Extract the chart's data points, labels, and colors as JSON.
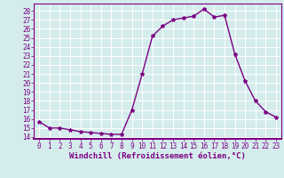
{
  "x": [
    0,
    1,
    2,
    3,
    4,
    5,
    6,
    7,
    8,
    9,
    10,
    11,
    12,
    13,
    14,
    15,
    16,
    17,
    18,
    19,
    20,
    21,
    22,
    23
  ],
  "y": [
    15.7,
    15.0,
    15.0,
    14.8,
    14.6,
    14.5,
    14.4,
    14.3,
    14.3,
    17.0,
    21.0,
    25.2,
    26.3,
    27.0,
    27.2,
    27.4,
    28.2,
    27.3,
    27.5,
    23.2,
    20.2,
    18.0,
    16.8,
    16.2
  ],
  "line_color": "#7b0083",
  "marker": "*",
  "marker_size": 3,
  "bg_color": "#d5ecec",
  "grid_color": "#ffffff",
  "xlabel": "Windchill (Refroidissement éolien,°C)",
  "ylabel": "",
  "xlim": [
    -0.5,
    23.5
  ],
  "ylim": [
    13.8,
    28.8
  ],
  "yticks": [
    14,
    15,
    16,
    17,
    18,
    19,
    20,
    21,
    22,
    23,
    24,
    25,
    26,
    27,
    28
  ],
  "xticks": [
    0,
    1,
    2,
    3,
    4,
    5,
    6,
    7,
    8,
    9,
    10,
    11,
    12,
    13,
    14,
    15,
    16,
    17,
    18,
    19,
    20,
    21,
    22,
    23
  ],
  "tick_label_size": 5.5,
  "xlabel_size": 6.5,
  "line_width": 1.0,
  "spine_color": "#7b0083"
}
